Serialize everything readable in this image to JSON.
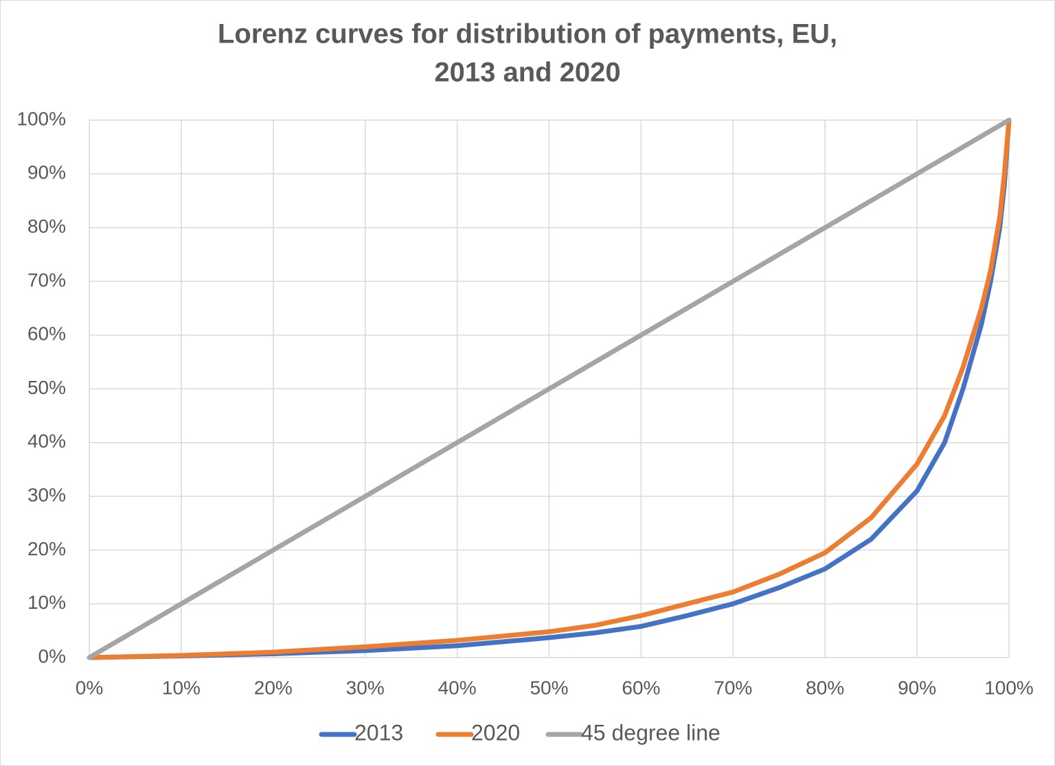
{
  "chart_data": {
    "type": "line",
    "title": [
      "Lorenz curves for distribution of payments, EU,",
      "2013 and 2020"
    ],
    "x": [
      0,
      10,
      20,
      30,
      40,
      50,
      55,
      60,
      65,
      70,
      75,
      80,
      85,
      90,
      93,
      95,
      97,
      98,
      99,
      99.5,
      100
    ],
    "series": [
      {
        "name": "2013",
        "color": "#4472c4",
        "values": [
          0,
          0.3,
          0.7,
          1.3,
          2.2,
          3.7,
          4.6,
          5.8,
          7.8,
          10,
          13,
          16.5,
          22,
          31,
          40,
          50,
          62,
          70,
          80,
          88,
          100
        ]
      },
      {
        "name": "2020",
        "color": "#ed7d31",
        "values": [
          0,
          0.4,
          1,
          2,
          3.2,
          4.8,
          6,
          7.8,
          10,
          12.2,
          15.5,
          19.5,
          26,
          36,
          45,
          54,
          65,
          72,
          82,
          90,
          100
        ]
      },
      {
        "name": "45 degree line",
        "color": "#a5a5a5",
        "values": [
          0,
          10,
          20,
          30,
          40,
          50,
          55,
          60,
          65,
          70,
          75,
          80,
          85,
          90,
          93,
          95,
          97,
          98,
          99,
          99.5,
          100
        ]
      }
    ],
    "xlim": [
      0,
      100
    ],
    "ylim": [
      0,
      100
    ],
    "xticks": [
      {
        "value": 0,
        "label": "0%"
      },
      {
        "value": 10,
        "label": "10%"
      },
      {
        "value": 20,
        "label": "20%"
      },
      {
        "value": 30,
        "label": "30%"
      },
      {
        "value": 40,
        "label": "40%"
      },
      {
        "value": 50,
        "label": "50%"
      },
      {
        "value": 60,
        "label": "60%"
      },
      {
        "value": 70,
        "label": "70%"
      },
      {
        "value": 80,
        "label": "80%"
      },
      {
        "value": 90,
        "label": "90%"
      },
      {
        "value": 100,
        "label": "100%"
      }
    ],
    "yticks": [
      {
        "value": 0,
        "label": "0%"
      },
      {
        "value": 10,
        "label": "10%"
      },
      {
        "value": 20,
        "label": "20%"
      },
      {
        "value": 30,
        "label": "30%"
      },
      {
        "value": 40,
        "label": "40%"
      },
      {
        "value": 50,
        "label": "50%"
      },
      {
        "value": 60,
        "label": "60%"
      },
      {
        "value": 70,
        "label": "70%"
      },
      {
        "value": 80,
        "label": "80%"
      },
      {
        "value": 90,
        "label": "90%"
      },
      {
        "value": 100,
        "label": "100%"
      }
    ],
    "grid": true,
    "legend": "bottom"
  }
}
